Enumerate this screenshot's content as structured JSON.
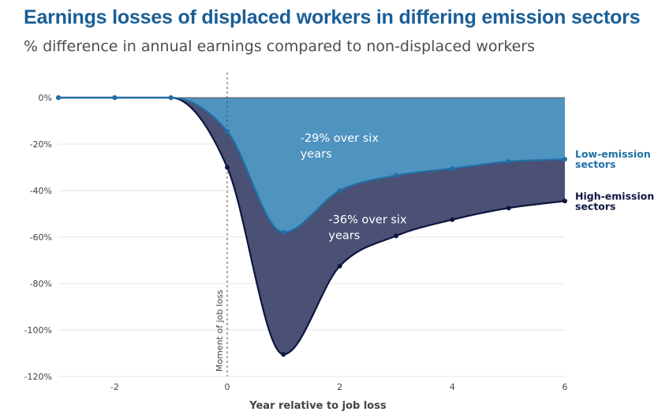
{
  "title": "Earnings losses of displaced workers in differing emission sectors",
  "subtitle": "% difference in annual earnings compared to non-displaced workers",
  "chart_data": {
    "type": "area",
    "x": [
      -3,
      -2,
      -1,
      0,
      1,
      2,
      3,
      4,
      5,
      6
    ],
    "xlabel": "Year relative to job loss",
    "ylabel": "",
    "xlim": [
      -3,
      6
    ],
    "ylim": [
      -120,
      0
    ],
    "xticks": [
      -2,
      0,
      2,
      4,
      6
    ],
    "yticks": [
      0,
      -20,
      -40,
      -60,
      -80,
      -100,
      -120
    ],
    "ytick_labels": [
      "0%",
      "-20%",
      "-40%",
      "-60%",
      "-80%",
      "-100%",
      "-120%"
    ],
    "grid": "horizontal",
    "series": [
      {
        "name": "Low-emission sectors",
        "color": "#1f6fa6",
        "fill": "#4f93bf",
        "values": [
          0,
          0,
          0,
          -14.5,
          -58,
          -40,
          -33.5,
          -30.5,
          -27.5,
          -26.5
        ]
      },
      {
        "name": "High-emission sectors",
        "color": "#0d1640",
        "fill": "#4a5175",
        "values": [
          0,
          0,
          0,
          -30,
          -110.5,
          -72.5,
          -59.5,
          -52.5,
          -47.5,
          -44.5
        ]
      }
    ],
    "annotations": [
      {
        "text_lines": [
          "-29% over six",
          "years"
        ],
        "x": 1.3,
        "y": -19
      },
      {
        "text_lines": [
          "-36% over six",
          "years"
        ],
        "x": 1.8,
        "y": -54
      }
    ],
    "vline": {
      "x": 0,
      "label": "Moment of job loss"
    }
  }
}
